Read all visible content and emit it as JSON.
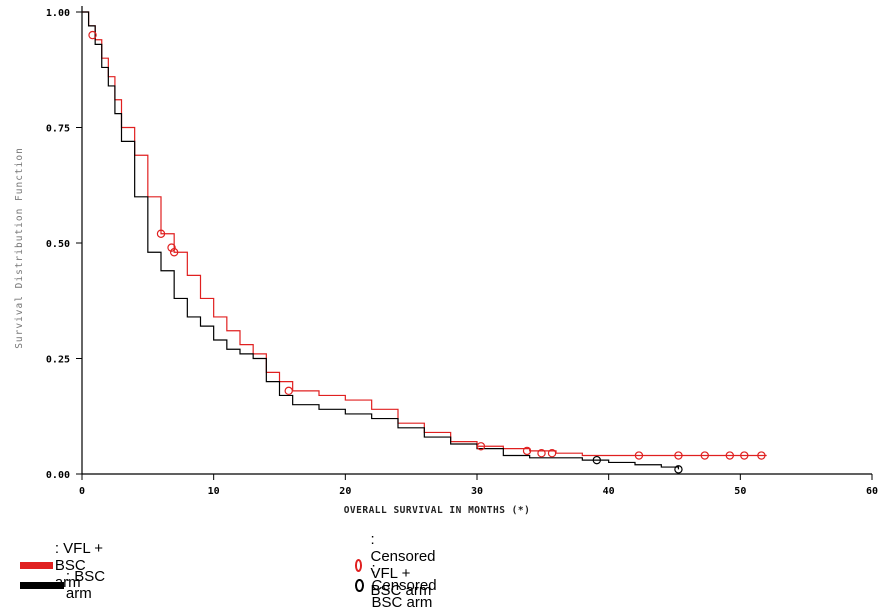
{
  "chart_data": {
    "type": "line",
    "chart_subtype": "kaplan-meier step",
    "xlabel": "OVERALL SURVIVAL IN MONTHS (*)",
    "ylabel": "Survival Distribution Function",
    "xlim": [
      0,
      60
    ],
    "ylim": [
      0,
      1
    ],
    "x_ticks": [
      "0",
      "10",
      "20",
      "30",
      "40",
      "50",
      "60"
    ],
    "y_ticks": [
      "0.00",
      "0.25",
      "0.50",
      "0.75",
      "1.00"
    ],
    "grid": false,
    "series": [
      {
        "name": "VFL + BSC arm",
        "color": "#e02020",
        "x": [
          0,
          0.5,
          1,
          1.5,
          2,
          2.5,
          3,
          4,
          5,
          6,
          7,
          8,
          9,
          10,
          11,
          12,
          13,
          14,
          15,
          16,
          18,
          20,
          22,
          24,
          26,
          28,
          30,
          32,
          34,
          36,
          38,
          40,
          44,
          48,
          52
        ],
        "y": [
          1.0,
          0.97,
          0.94,
          0.9,
          0.86,
          0.81,
          0.75,
          0.69,
          0.6,
          0.52,
          0.48,
          0.43,
          0.38,
          0.34,
          0.31,
          0.28,
          0.26,
          0.22,
          0.2,
          0.18,
          0.17,
          0.16,
          0.14,
          0.11,
          0.09,
          0.07,
          0.06,
          0.055,
          0.05,
          0.045,
          0.04,
          0.04,
          0.04,
          0.04,
          0.04
        ],
        "censored": {
          "x": [
            0.8,
            6.0,
            6.8,
            7.0,
            15.7,
            30.3,
            33.8,
            34.9,
            35.7,
            42.3,
            45.3,
            47.3,
            49.2,
            50.3,
            51.6
          ],
          "y": [
            0.95,
            0.52,
            0.49,
            0.48,
            0.18,
            0.06,
            0.05,
            0.045,
            0.045,
            0.04,
            0.04,
            0.04,
            0.04,
            0.04,
            0.04
          ]
        }
      },
      {
        "name": "BSC arm",
        "color": "#000000",
        "x": [
          0,
          0.5,
          1,
          1.5,
          2,
          2.5,
          3,
          4,
          5,
          6,
          7,
          8,
          9,
          10,
          11,
          12,
          13,
          14,
          15,
          16,
          18,
          20,
          22,
          24,
          26,
          28,
          30,
          32,
          34,
          36,
          38,
          40,
          42,
          44,
          45.3
        ],
        "y": [
          1.0,
          0.97,
          0.93,
          0.88,
          0.84,
          0.78,
          0.72,
          0.6,
          0.48,
          0.44,
          0.38,
          0.34,
          0.32,
          0.29,
          0.27,
          0.26,
          0.25,
          0.2,
          0.17,
          0.15,
          0.14,
          0.13,
          0.12,
          0.1,
          0.08,
          0.065,
          0.055,
          0.04,
          0.035,
          0.035,
          0.03,
          0.025,
          0.02,
          0.015,
          0.01
        ],
        "censored": {
          "x": [
            39.1,
            45.3
          ],
          "y": [
            0.03,
            0.01
          ]
        }
      }
    ]
  },
  "legend": {
    "vfl_arm": ": VFL + BSC arm",
    "bsc_arm": ":  BSC arm",
    "censored_vfl": ": Censored VFL + BSC arm",
    "censored_bsc": ": Censored BSC arm"
  }
}
